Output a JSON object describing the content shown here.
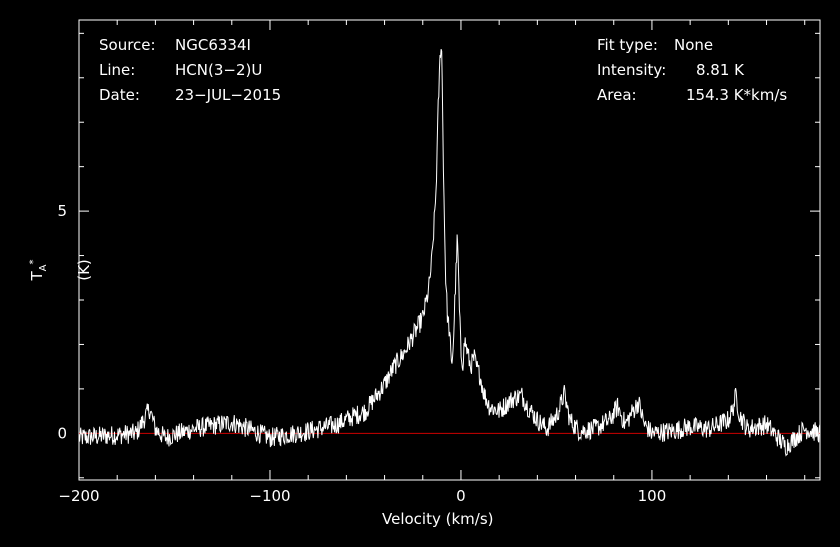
{
  "chart_data": {
    "type": "line",
    "xlabel": "Velocity (km/s)",
    "ylabel": "T",
    "ylabel_sub": "A",
    "ylabel_sup": "*",
    "ylabel_unit": "(K)",
    "xlim": [
      -200,
      188
    ],
    "ylim": [
      -1.05,
      9.3
    ],
    "x_ticks": [
      -200,
      -100,
      0,
      100
    ],
    "x_tick_labels": [
      "−200",
      "−100",
      "0",
      "100"
    ],
    "y_ticks": [
      0,
      5
    ],
    "y_tick_labels": [
      "0",
      "5"
    ],
    "grid": false,
    "baseline": 0,
    "series": [
      {
        "color": "#ffffff",
        "x": [
          -200,
          -170,
          -163,
          -160,
          -155,
          -140,
          -120,
          -100,
          -80,
          -65,
          -58,
          -50,
          -45,
          -40,
          -35,
          -30,
          -25,
          -20,
          -17,
          -15,
          -13,
          -12,
          -11,
          -10.5,
          -10,
          -9.5,
          -9,
          -8,
          -7,
          -6,
          -5,
          -4,
          -3,
          -2,
          -1.5,
          -1,
          0,
          1,
          2,
          3,
          4,
          5,
          7,
          8,
          10,
          12,
          15,
          20,
          25,
          28,
          32,
          35,
          40,
          45,
          50,
          52,
          54,
          57,
          62,
          70,
          78,
          82,
          86,
          90,
          93,
          96,
          100,
          110,
          120,
          130,
          140,
          142,
          144,
          146,
          150,
          160,
          170,
          180,
          188
        ],
        "y": [
          -0.1,
          0.0,
          0.55,
          0.1,
          -0.1,
          0.1,
          0.25,
          -0.1,
          0.05,
          0.2,
          0.35,
          0.5,
          0.8,
          1.1,
          1.5,
          1.8,
          2.2,
          2.6,
          3.2,
          4.0,
          5.5,
          7.2,
          8.4,
          8.81,
          8.5,
          7.0,
          5.5,
          3.5,
          2.6,
          2.3,
          1.5,
          2.0,
          3.2,
          4.3,
          4.0,
          3.0,
          1.8,
          1.6,
          2.1,
          1.9,
          1.7,
          1.5,
          1.7,
          1.5,
          1.3,
          0.9,
          0.6,
          0.5,
          0.7,
          0.8,
          0.85,
          0.6,
          0.3,
          0.1,
          0.4,
          0.6,
          0.9,
          0.3,
          0.05,
          0.1,
          0.3,
          0.6,
          0.2,
          0.5,
          0.7,
          0.2,
          0.0,
          0.05,
          0.15,
          0.1,
          0.3,
          0.5,
          0.85,
          0.4,
          0.1,
          0.2,
          -0.3,
          0.1,
          0.0
        ]
      }
    ],
    "baseline_color": "#cc0000"
  },
  "info": {
    "source_label": "Source:",
    "source_value": "NGC6334I",
    "line_label": "Line:",
    "line_value": "HCN(3−2)U",
    "date_label": "Date:",
    "date_value": "23−JUL−2015",
    "fit_label": "Fit type:",
    "fit_value": "None",
    "intensity_label": "Intensity:",
    "intensity_value": "8.81 K",
    "area_label": "Area:",
    "area_value": "154.3 K*km/s"
  }
}
